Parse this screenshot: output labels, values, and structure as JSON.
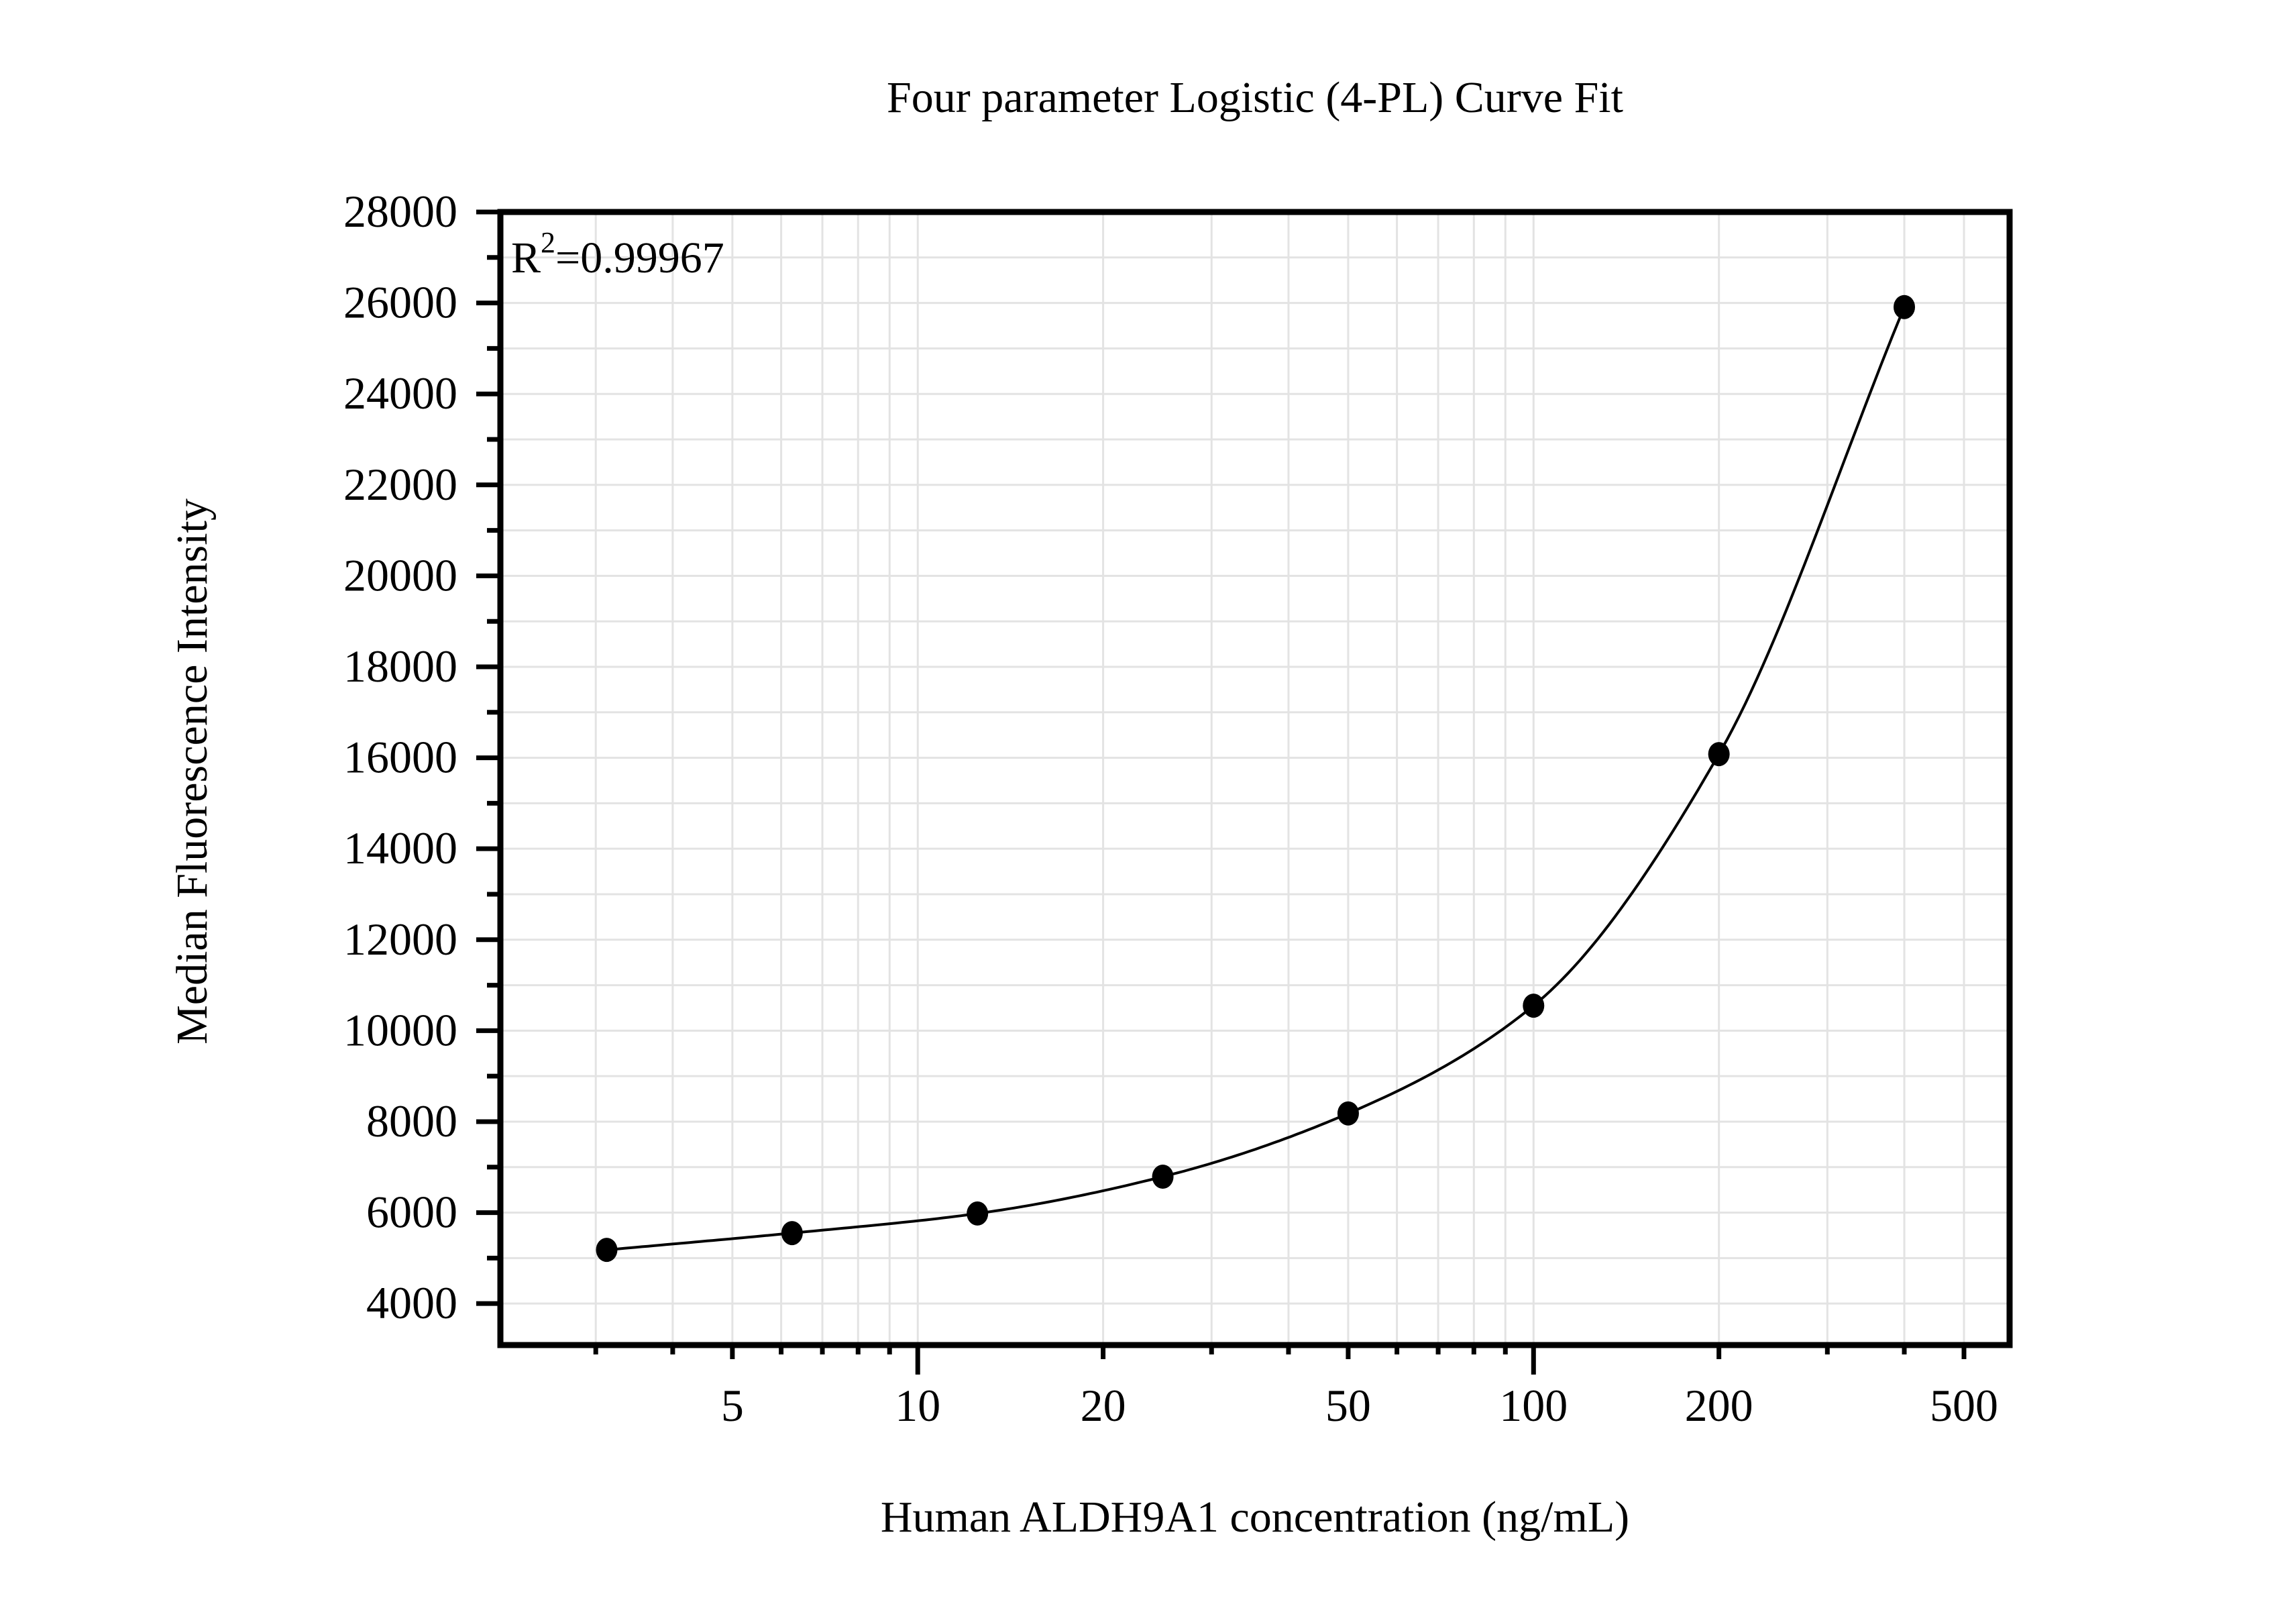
{
  "chart": {
    "title": "Four parameter Logistic (4-PL) Curve Fit",
    "annotation": {
      "base": "R",
      "sup": "2",
      "rest": "=0.99967",
      "full": "R²=0.99967"
    },
    "xlabel": "Human ALDH9A1 concentration (ng/mL)",
    "ylabel": "Median Fluorescence Intensity"
  },
  "chart_data": {
    "type": "scatter",
    "title": "Four parameter Logistic (4-PL) Curve Fit",
    "xlabel": "Human ALDH9A1 concentration (ng/mL)",
    "ylabel": "Median Fluorescence Intensity",
    "annotation": "R²=0.99967",
    "curve": "4-PL fit line drawn through all points",
    "x": [
      3.125,
      6.25,
      12.5,
      25,
      50,
      100,
      200,
      400
    ],
    "y": [
      5180,
      5550,
      5980,
      6790,
      8180,
      10550,
      16080,
      25910
    ],
    "x_axis": {
      "scale": "log",
      "min": 2.1,
      "max": 593,
      "labeled_ticks": [
        5,
        10,
        20,
        50,
        100,
        200,
        500
      ],
      "minor_ticks": [
        3,
        4,
        6,
        7,
        8,
        9,
        30,
        40,
        60,
        70,
        80,
        90,
        300,
        400
      ],
      "long_ticks": [
        10,
        100
      ]
    },
    "y_axis": {
      "scale": "linear",
      "min": 3088,
      "max": 28000,
      "major_tick_start": 4000,
      "major_tick_step": 2000,
      "minor_tick_step": 1000,
      "tick_labels": [
        "4000",
        "6000",
        "8000",
        "10000",
        "12000",
        "14000",
        "16000",
        "18000",
        "20000",
        "22000",
        "24000",
        "26000",
        "28000"
      ]
    },
    "grid": true,
    "legend": false,
    "colors": {
      "background": "#ffffff",
      "text": "#000000",
      "frame": "#000000",
      "grid": "#e3e3e3",
      "points": "#000000",
      "curve": "#000000"
    }
  }
}
